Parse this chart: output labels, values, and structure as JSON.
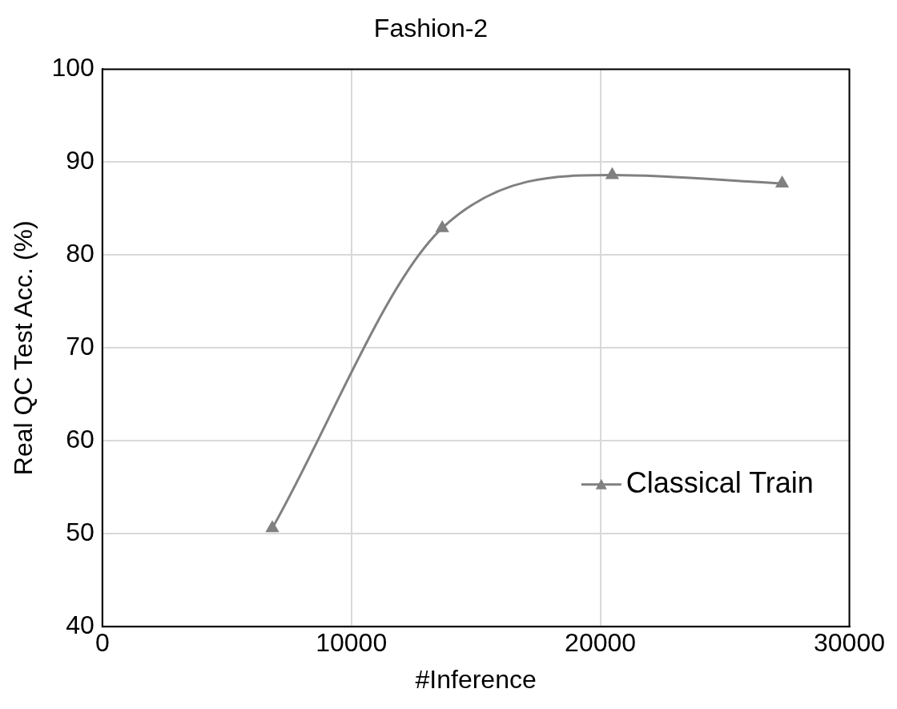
{
  "chart_data": {
    "type": "line",
    "title": "Fashion-2",
    "xlabel": "#Inference",
    "ylabel": "Real QC Test Acc. (%)",
    "x": [
      6825,
      13650,
      20475,
      27300
    ],
    "series": [
      {
        "name": "Classical Train",
        "color": "#808080",
        "values": [
          50.6,
          82.9,
          88.6,
          87.7
        ]
      }
    ],
    "xlim": [
      0,
      30000
    ],
    "xticks": [
      0,
      10000,
      20000,
      30000
    ],
    "ylim": [
      40,
      100
    ],
    "yticks": [
      40,
      50,
      60,
      70,
      80,
      90,
      100
    ],
    "grid": true,
    "legend": "right",
    "marker": "triangle",
    "line_style": "solid"
  }
}
